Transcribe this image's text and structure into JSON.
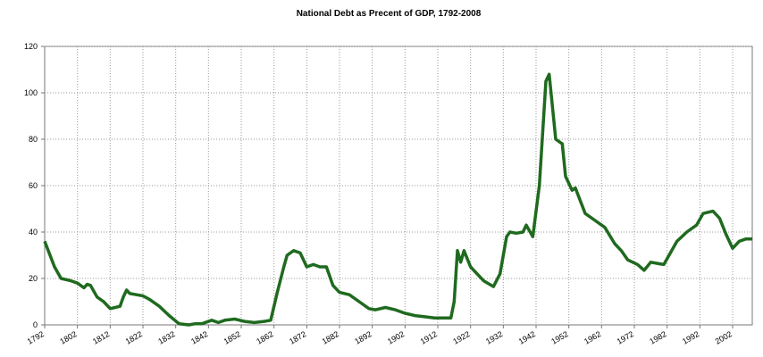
{
  "chart_data": {
    "type": "line",
    "title": "National Debt as Precent of GDP, 1792-2008",
    "x": [
      1792,
      1795,
      1797,
      1800,
      1802,
      1804,
      1805,
      1806,
      1808,
      1810,
      1812,
      1815,
      1816,
      1817,
      1818,
      1820,
      1822,
      1824,
      1827,
      1830,
      1833,
      1836,
      1838,
      1840,
      1843,
      1845,
      1847,
      1850,
      1853,
      1856,
      1859,
      1861,
      1863,
      1865,
      1866,
      1868,
      1870,
      1872,
      1874,
      1876,
      1878,
      1880,
      1882,
      1885,
      1888,
      1891,
      1893,
      1896,
      1899,
      1902,
      1905,
      1908,
      1911,
      1915,
      1916,
      1917,
      1918,
      1919,
      1920,
      1922,
      1924,
      1926,
      1929,
      1931,
      1933,
      1934,
      1936,
      1938,
      1939,
      1941,
      1943,
      1945,
      1946,
      1948,
      1950,
      1951,
      1953,
      1954,
      1957,
      1960,
      1963,
      1966,
      1968,
      1970,
      1973,
      1975,
      1977,
      1979,
      1981,
      1983,
      1985,
      1988,
      1991,
      1993,
      1996,
      1998,
      2000,
      2002,
      2004,
      2006,
      2008
    ],
    "series": [
      {
        "color": "#1f6a1f",
        "values": [
          36,
          25,
          20,
          19,
          18,
          16,
          17.5,
          17,
          12,
          10,
          7,
          8,
          12,
          15,
          13.5,
          13,
          12.5,
          11,
          8,
          4,
          0.5,
          0,
          0.5,
          0.5,
          2,
          1,
          2,
          2.5,
          1.5,
          1,
          1.5,
          2,
          14,
          25,
          30,
          32,
          31,
          25,
          26,
          25,
          25,
          17,
          14,
          13,
          10,
          7,
          6.5,
          7.5,
          6.5,
          5,
          4,
          3.5,
          3,
          3,
          3,
          10,
          32,
          27,
          32,
          25,
          22,
          19,
          16.5,
          22,
          38,
          40,
          39.5,
          40,
          43,
          38,
          60,
          105,
          108,
          80,
          78,
          64,
          58,
          59,
          48,
          45,
          42,
          35,
          32,
          28,
          26,
          23.5,
          27,
          26.5,
          26,
          31,
          36,
          40,
          43,
          48,
          49,
          46,
          39,
          33,
          36,
          37,
          37
        ]
      }
    ],
    "xlim": [
      1792,
      2008
    ],
    "xticks": [
      1792,
      1802,
      1812,
      1822,
      1832,
      1842,
      1852,
      1862,
      1872,
      1882,
      1892,
      1902,
      1912,
      1922,
      1932,
      1942,
      1952,
      1962,
      1972,
      1982,
      1992,
      2002
    ],
    "ylim": [
      0,
      120
    ],
    "yticks": [
      0,
      20,
      40,
      60,
      80,
      100,
      120
    ],
    "grid": true
  }
}
